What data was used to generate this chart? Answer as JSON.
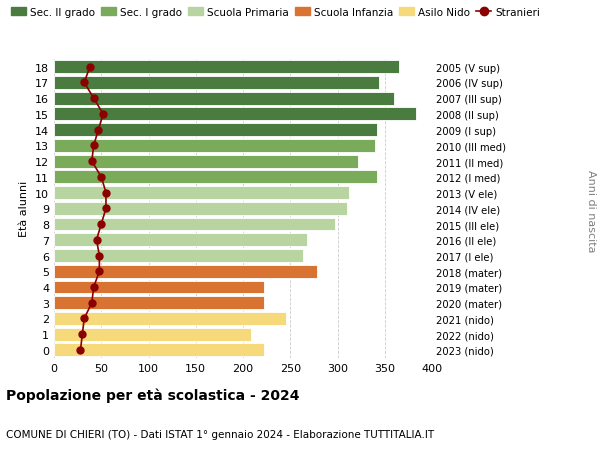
{
  "ages": [
    18,
    17,
    16,
    15,
    14,
    13,
    12,
    11,
    10,
    9,
    8,
    7,
    6,
    5,
    4,
    3,
    2,
    1,
    0
  ],
  "right_labels": [
    "2005 (V sup)",
    "2006 (IV sup)",
    "2007 (III sup)",
    "2008 (II sup)",
    "2009 (I sup)",
    "2010 (III med)",
    "2011 (II med)",
    "2012 (I med)",
    "2013 (V ele)",
    "2014 (IV ele)",
    "2015 (III ele)",
    "2016 (II ele)",
    "2017 (I ele)",
    "2018 (mater)",
    "2019 (mater)",
    "2020 (mater)",
    "2021 (nido)",
    "2022 (nido)",
    "2023 (nido)"
  ],
  "bar_values": [
    365,
    344,
    360,
    383,
    342,
    340,
    322,
    342,
    312,
    310,
    297,
    268,
    263,
    278,
    222,
    222,
    245,
    208,
    222
  ],
  "bar_colors": [
    "#4a7c3f",
    "#4a7c3f",
    "#4a7c3f",
    "#4a7c3f",
    "#4a7c3f",
    "#7aab5a",
    "#7aab5a",
    "#7aab5a",
    "#b8d4a0",
    "#b8d4a0",
    "#b8d4a0",
    "#b8d4a0",
    "#b8d4a0",
    "#d97332",
    "#d97332",
    "#d97332",
    "#f5d97a",
    "#f5d97a",
    "#f5d97a"
  ],
  "stranieri_values": [
    38,
    32,
    42,
    52,
    47,
    42,
    40,
    50,
    55,
    55,
    50,
    45,
    48,
    48,
    42,
    40,
    32,
    30,
    28
  ],
  "stranieri_color": "#8b0000",
  "legend_items": [
    {
      "label": "Sec. II grado",
      "color": "#4a7c3f",
      "type": "patch"
    },
    {
      "label": "Sec. I grado",
      "color": "#7aab5a",
      "type": "patch"
    },
    {
      "label": "Scuola Primaria",
      "color": "#b8d4a0",
      "type": "patch"
    },
    {
      "label": "Scuola Infanzia",
      "color": "#d97332",
      "type": "patch"
    },
    {
      "label": "Asilo Nido",
      "color": "#f5d97a",
      "type": "patch"
    },
    {
      "label": "Stranieri",
      "color": "#8b0000",
      "type": "line"
    }
  ],
  "ylabel_left": "Età alunni",
  "ylabel_right": "Anni di nascita",
  "title_bold": "Popolazione per età scolastica - 2024",
  "subtitle": "COMUNE DI CHIERI (TO) - Dati ISTAT 1° gennaio 2024 - Elaborazione TUTTITALIA.IT",
  "xlim": [
    0,
    400
  ],
  "xticks": [
    0,
    50,
    100,
    150,
    200,
    250,
    300,
    350,
    400
  ],
  "background_color": "#ffffff",
  "grid_color": "#cccccc"
}
